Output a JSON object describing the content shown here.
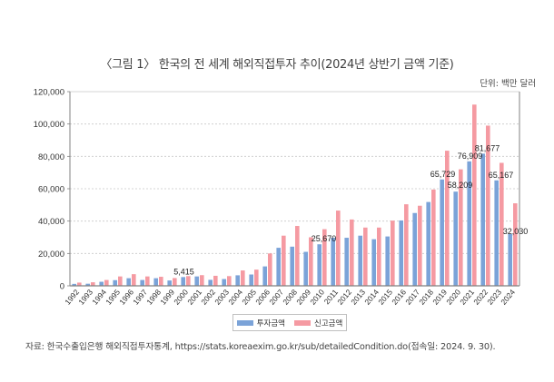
{
  "title": "〈그림 1〉 한국의 전 세계 해외직접투자 추이(2024년 상반기 금액 기준)",
  "unit": "단위: 백만 달러",
  "source": "자료: 한국수출입은행 해외직접투자통계, https://stats.koreaexim.go.kr/sub/detailedCondition.do(접속일: 2024. 9. 30).",
  "colors": {
    "invest": "#7ba3d8",
    "report": "#f59aa2",
    "axis": "#808080",
    "grid": "#c8c8c8"
  },
  "chart_data": {
    "type": "bar",
    "title": "〈그림 1〉 한국의 전 세계 해외직접투자 추이(2024년 상반기 금액 기준)",
    "xlabel": "",
    "ylabel": "",
    "unit": "단위: 백만 달러",
    "ylim": [
      0,
      120000
    ],
    "yticks": [
      0,
      20000,
      40000,
      60000,
      80000,
      100000,
      120000
    ],
    "ytick_labels": [
      "0",
      "20,000",
      "40,000",
      "60,000",
      "80,000",
      "100,000",
      "120,000"
    ],
    "grid": true,
    "legend_position": "bottom-center",
    "categories": [
      "1992",
      "1993",
      "1994",
      "1995",
      "1996",
      "1997",
      "1998",
      "1999",
      "2000",
      "2001",
      "2002",
      "2003",
      "2004",
      "2005",
      "2006",
      "2007",
      "2008",
      "2009",
      "2010",
      "2011",
      "2012",
      "2013",
      "2014",
      "2015",
      "2016",
      "2017",
      "2018",
      "2019",
      "2020",
      "2021",
      "2022",
      "2023",
      "2024"
    ],
    "series": [
      {
        "name": "투자금액",
        "values": [
          1200,
          1300,
          2500,
          3500,
          4700,
          3600,
          4700,
          3300,
          5415,
          5800,
          3700,
          4200,
          6500,
          7000,
          12000,
          23500,
          24200,
          21000,
          25670,
          29700,
          29700,
          31000,
          28800,
          30500,
          40400,
          45000,
          51800,
          65729,
          58209,
          76909,
          81677,
          65167,
          32030
        ]
      },
      {
        "name": "신고금액",
        "values": [
          2000,
          2200,
          3600,
          5800,
          7200,
          5800,
          5600,
          4800,
          6000,
          6600,
          6200,
          6000,
          9500,
          10000,
          20000,
          31000,
          37000,
          30000,
          35000,
          46500,
          41000,
          36000,
          36000,
          40300,
          50400,
          49500,
          59500,
          83500,
          72000,
          112000,
          99000,
          76000,
          51000
        ]
      }
    ],
    "data_labels": [
      {
        "category": "2000",
        "series": "투자금액",
        "text": "5,415"
      },
      {
        "category": "2010",
        "series": "투자금액",
        "text": "25,670"
      },
      {
        "category": "2019",
        "series": "투자금액",
        "text": "65,729"
      },
      {
        "category": "2020",
        "series": "투자금액",
        "text": "58,209"
      },
      {
        "category": "2021",
        "series": "투자금액",
        "text": "76,909"
      },
      {
        "category": "2022",
        "series": "투자금액",
        "text": "81,677"
      },
      {
        "category": "2023",
        "series": "투자금액",
        "text": "65,167"
      },
      {
        "category": "2024",
        "series": "투자금액",
        "text": "32,030"
      }
    ]
  },
  "legend": [
    {
      "label": "투자금액",
      "color": "#7ba3d8"
    },
    {
      "label": "신고금액",
      "color": "#f59aa2"
    }
  ]
}
